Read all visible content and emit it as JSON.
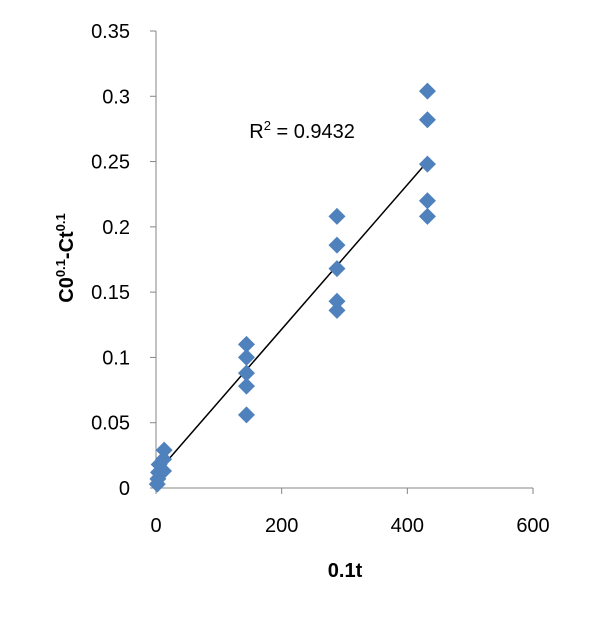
{
  "chart_data": {
    "type": "scatter",
    "xlabel": "0.1t",
    "ylabel": {
      "base1": "C0",
      "exp1": "0.1",
      "mid": "-Ct",
      "exp2": "0.1"
    },
    "xlim": [
      0,
      600
    ],
    "ylim": [
      0,
      0.35
    ],
    "x_ticks": [
      0,
      200,
      400,
      600
    ],
    "x_tick_labels": [
      "0",
      "200",
      "400",
      "600"
    ],
    "y_ticks": [
      0,
      0.05,
      0.1,
      0.15,
      0.2,
      0.25,
      0.3,
      0.35
    ],
    "y_tick_labels": [
      "0",
      "0.05",
      "0.1",
      "0.15",
      "0.2",
      "0.25",
      "0.3",
      "0.35"
    ],
    "grid": false,
    "marker": "diamond",
    "color": "#4F81BD",
    "points": [
      {
        "x": 2,
        "y": 0.003
      },
      {
        "x": 3,
        "y": 0.007
      },
      {
        "x": 4,
        "y": 0.012
      },
      {
        "x": 5,
        "y": 0.018
      },
      {
        "x": 12,
        "y": 0.013
      },
      {
        "x": 12,
        "y": 0.022
      },
      {
        "x": 13,
        "y": 0.029
      },
      {
        "x": 144,
        "y": 0.056
      },
      {
        "x": 144,
        "y": 0.078
      },
      {
        "x": 144,
        "y": 0.088
      },
      {
        "x": 144,
        "y": 0.1
      },
      {
        "x": 144,
        "y": 0.11
      },
      {
        "x": 288,
        "y": 0.136
      },
      {
        "x": 288,
        "y": 0.143
      },
      {
        "x": 288,
        "y": 0.168
      },
      {
        "x": 288,
        "y": 0.186
      },
      {
        "x": 288,
        "y": 0.208
      },
      {
        "x": 432,
        "y": 0.208
      },
      {
        "x": 432,
        "y": 0.22
      },
      {
        "x": 432,
        "y": 0.248
      },
      {
        "x": 432,
        "y": 0.282
      },
      {
        "x": 432,
        "y": 0.304
      }
    ],
    "trendline": {
      "type": "linear",
      "x_start": 2,
      "y_start": 0.012,
      "x_end": 432,
      "y_end": 0.25,
      "color": "#000000"
    },
    "annotation": {
      "base": "R",
      "sup": "2",
      "rest": " = 0.9432",
      "x": 150,
      "y": 0.268
    }
  }
}
